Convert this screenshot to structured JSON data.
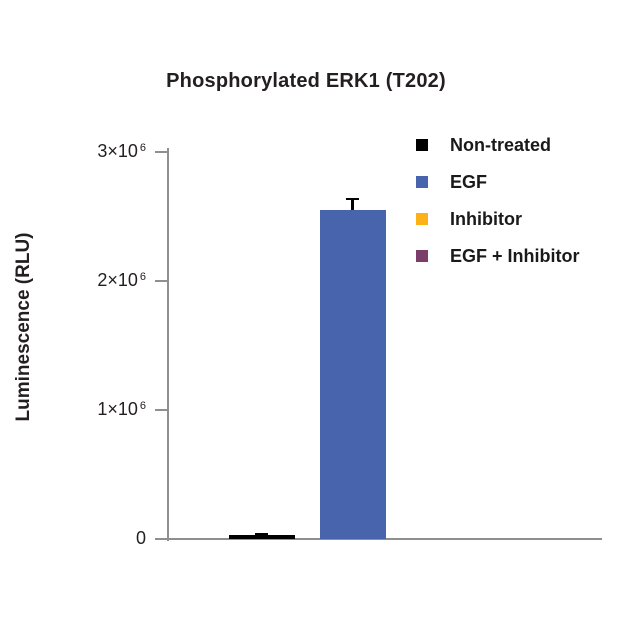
{
  "chart_data": {
    "type": "bar",
    "title": "Phosphorylated ERK1 (T202)",
    "ylabel": "Luminescence (RLU)",
    "xlabel": "",
    "categories": [
      "Non-treated",
      "EGF",
      "Inhibitor",
      "EGF + Inhibitor"
    ],
    "values": [
      30000,
      2550000,
      0,
      0
    ],
    "errors": [
      15000,
      95000,
      0,
      0
    ],
    "bar_colors": [
      "#000000",
      "#4764ad",
      "#fbb117",
      "#7b3e69"
    ],
    "error_bar_color": "#000000",
    "ylim": [
      0,
      3000000
    ],
    "yticks": [
      {
        "value": 0,
        "base": "0",
        "exp": ""
      },
      {
        "value": 1000000,
        "base": "1×10",
        "exp": "6"
      },
      {
        "value": 2000000,
        "base": "2×10",
        "exp": "6"
      },
      {
        "value": 3000000,
        "base": "3×10",
        "exp": "6"
      }
    ],
    "legend": [
      {
        "label": "Non-treated",
        "color": "#000000"
      },
      {
        "label": "EGF",
        "color": "#4764ad"
      },
      {
        "label": "Inhibitor",
        "color": "#fbb117"
      },
      {
        "label": "EGF + Inhibitor",
        "color": "#7b3e69"
      }
    ],
    "legend_position": "upper right",
    "grid": false,
    "axis_color": "#8f8f8f"
  }
}
